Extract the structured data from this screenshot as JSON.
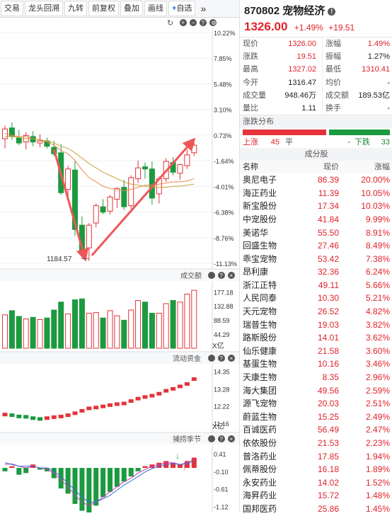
{
  "toolbar": {
    "buttons": [
      "交易",
      "龙头回溯",
      "九转",
      "前复权",
      "叠加",
      "画线",
      "自选"
    ],
    "more_icon": "double-chevron-right-icon"
  },
  "chart": {
    "price_axis": [
      "10.22%",
      "7.85%",
      "5.48%",
      "3.10%",
      "0.73%",
      "-1.64%",
      "-4.01%",
      "-6.38%",
      "-8.76%",
      "-11.13%"
    ],
    "low_label": "1184.57",
    "volume_title": "成交额",
    "volume_axis": [
      "177.18",
      "132.88",
      "88.59",
      "44.29"
    ],
    "volume_unit": "X亿",
    "flow_title": "流动资金",
    "flow_axis": [
      "14.35",
      "13.28",
      "12.22",
      "11.16"
    ],
    "flow_unit": "X亿",
    "season_title": "捕捞季节",
    "season_axis": [
      "0.41",
      "-0.10",
      "-0.61",
      "-1.12"
    ],
    "colors": {
      "up": "#e5323a",
      "down": "#1c9a3f",
      "ma1": "#e98a4a",
      "ma2": "#c9a33b",
      "arrow": "#ef5757"
    }
  },
  "chart_data": {
    "type": "candlestick",
    "candles": [
      {
        "o": 0.4,
        "h": 1.6,
        "l": -0.5,
        "c": 1.3
      },
      {
        "o": 1.4,
        "h": 1.9,
        "l": 0.3,
        "c": 0.6
      },
      {
        "o": 0.5,
        "h": 1.2,
        "l": -0.2,
        "c": 0.0
      },
      {
        "o": 0.1,
        "h": 1.0,
        "l": -0.6,
        "c": 0.7
      },
      {
        "o": 0.6,
        "h": 1.1,
        "l": -0.3,
        "c": 0.1
      },
      {
        "o": 0.0,
        "h": 0.8,
        "l": -0.4,
        "c": 0.2
      },
      {
        "o": 0.2,
        "h": 0.5,
        "l": -0.5,
        "c": -0.3
      },
      {
        "o": -0.4,
        "h": 0.2,
        "l": -1.2,
        "c": -1.0
      },
      {
        "o": -0.9,
        "h": -0.1,
        "l": -4.8,
        "c": -4.6
      },
      {
        "o": -4.3,
        "h": -2.1,
        "l": -5.2,
        "c": -2.4
      },
      {
        "o": -2.5,
        "h": -1.7,
        "l": -8.6,
        "c": -8.0
      },
      {
        "o": -7.6,
        "h": -6.8,
        "l": -10.7,
        "c": -9.9
      },
      {
        "o": -9.7,
        "h": -7.4,
        "l": -10.9,
        "c": -7.6
      },
      {
        "o": -7.4,
        "h": -5.6,
        "l": -7.8,
        "c": -5.8
      },
      {
        "o": -5.9,
        "h": -5.2,
        "l": -6.6,
        "c": -6.4
      },
      {
        "o": -6.3,
        "h": -4.8,
        "l": -6.6,
        "c": -5.0
      },
      {
        "o": -5.2,
        "h": -4.1,
        "l": -6.0,
        "c": -4.2
      },
      {
        "o": -4.1,
        "h": -3.4,
        "l": -6.2,
        "c": -5.9
      },
      {
        "o": -5.8,
        "h": -3.0,
        "l": -6.1,
        "c": -3.2
      },
      {
        "o": -3.3,
        "h": -1.6,
        "l": -3.7,
        "c": -2.3
      },
      {
        "o": -2.2,
        "h": -1.8,
        "l": -3.3,
        "c": -2.4
      },
      {
        "o": -2.4,
        "h": -1.7,
        "l": -5.7,
        "c": -5.1
      },
      {
        "o": -4.7,
        "h": -3.1,
        "l": -5.6,
        "c": -3.3
      },
      {
        "o": -3.3,
        "h": -1.4,
        "l": -3.6,
        "c": -1.7
      },
      {
        "o": -1.8,
        "h": -1.3,
        "l": -3.0,
        "c": -2.7
      },
      {
        "o": -2.8,
        "h": -1.9,
        "l": -3.4,
        "c": -2.0
      },
      {
        "o": -2.1,
        "h": -0.6,
        "l": -2.4,
        "c": -1.1
      },
      {
        "o": -0.9,
        "h": 0.0,
        "l": -1.2,
        "c": -0.2
      }
    ],
    "ma1": [
      0.9,
      0.7,
      0.6,
      0.6,
      0.4,
      0.3,
      0.1,
      -0.2,
      -0.7,
      -1.0,
      -1.6,
      -2.5,
      -3.2,
      -3.6,
      -4.0,
      -4.2,
      -4.3,
      -4.4,
      -4.3,
      -4.1,
      -3.9,
      -3.9,
      -3.8,
      -3.7,
      -3.6,
      -3.6,
      -3.5,
      -3.3
    ],
    "ma2": [
      0.6,
      0.6,
      0.5,
      0.4,
      0.4,
      0.3,
      0.2,
      0.0,
      -0.3,
      -0.5,
      -0.9,
      -1.4,
      -1.9,
      -2.3,
      -2.7,
      -3.0,
      -3.3,
      -3.6,
      -3.8,
      -3.9,
      -4.0,
      -4.1,
      -4.1,
      -4.1,
      -4.0,
      -4.0,
      -3.9,
      -3.8
    ],
    "volume": [
      105,
      118,
      100,
      92,
      97,
      90,
      95,
      120,
      145,
      108,
      152,
      155,
      110,
      112,
      95,
      118,
      102,
      88,
      120,
      150,
      145,
      110,
      110,
      140,
      150,
      145,
      170,
      182
    ],
    "flow": [
      11.72,
      11.68,
      11.6,
      11.58,
      11.5,
      11.45,
      11.5,
      11.56,
      11.6,
      11.68,
      11.8,
      11.95,
      12.1,
      12.15,
      12.22,
      12.3,
      12.36,
      12.4,
      12.55,
      12.7,
      12.8,
      12.88,
      13.0,
      13.18,
      13.3,
      13.45,
      13.6,
      13.9
    ],
    "season": [
      -0.1,
      0.05,
      -0.2,
      -0.15,
      0.1,
      -0.05,
      -0.1,
      -0.3,
      -0.6,
      -0.75,
      -1.05,
      -1.25,
      -1.3,
      -1.1,
      -0.85,
      -0.7,
      -0.55,
      -0.4,
      -0.25,
      -0.1,
      0.05,
      0.1,
      0.15,
      0.2,
      0.15,
      0.1,
      0.2,
      0.3
    ],
    "season_line1": [
      0.1,
      0.12,
      0.05,
      0.0,
      0.05,
      0.0,
      -0.05,
      -0.15,
      -0.35,
      -0.55,
      -0.8,
      -1.0,
      -1.1,
      -1.0,
      -0.85,
      -0.7,
      -0.55,
      -0.4,
      -0.3,
      -0.15,
      -0.05,
      0.05,
      0.1,
      0.15,
      0.15,
      0.1,
      0.15,
      0.25
    ],
    "season_line2": [
      0.15,
      0.1,
      0.05,
      0.05,
      0.05,
      0.0,
      0.0,
      -0.1,
      -0.25,
      -0.45,
      -0.65,
      -0.85,
      -1.0,
      -1.0,
      -0.9,
      -0.8,
      -0.65,
      -0.5,
      -0.38,
      -0.25,
      -0.12,
      -0.02,
      0.05,
      0.1,
      0.12,
      0.1,
      0.12,
      0.2
    ],
    "ylim": [
      -11.13,
      10.22
    ],
    "volume_ylim": [
      0,
      200
    ],
    "flow_ylim": [
      10.9,
      14.6
    ],
    "season_ylim": [
      -1.3,
      0.6
    ]
  },
  "quote": {
    "code": "870802",
    "name": "宠物经济",
    "price": "1326.00",
    "change_pct": "+1.49%",
    "change": "+19.51",
    "rows": [
      {
        "l": "现价",
        "v": "1326.00",
        "vc": "red",
        "l2": "涨幅",
        "v2": "1.49%",
        "v2c": "red"
      },
      {
        "l": "涨跌",
        "v": "19.51",
        "vc": "red",
        "l2": "振幅",
        "v2": "1.27%",
        "v2c": "dark"
      },
      {
        "l": "最高",
        "v": "1327.02",
        "vc": "red",
        "l2": "最低",
        "v2": "1310.41",
        "v2c": "red"
      },
      {
        "l": "今开",
        "v": "1316.47",
        "vc": "dark",
        "l2": "均价",
        "v2": "-",
        "v2c": "dark"
      },
      {
        "l": "成交量",
        "v": "948.46万",
        "vc": "dark",
        "l2": "成交额",
        "v2": "189.53亿",
        "v2c": "dark"
      },
      {
        "l": "量比",
        "v": "1.11",
        "vc": "dark",
        "l2": "换手",
        "v2": "-",
        "v2c": "dark"
      }
    ],
    "dist_title": "涨跌分布",
    "dist": {
      "up_label": "上涨",
      "up": "45",
      "flat_label": "平",
      "flat": "-",
      "down_label": "下跌",
      "down": "33",
      "up_count": 45,
      "down_count": 33
    },
    "const_title": "成分股",
    "const_head": [
      "名称",
      "现价",
      "涨幅"
    ],
    "constituents": [
      [
        "奥尼电子",
        "86.39",
        "20.00%"
      ],
      [
        "海正药业",
        "11.39",
        "10.05%"
      ],
      [
        "新宝股份",
        "17.34",
        "10.03%"
      ],
      [
        "中宠股份",
        "41.84",
        "9.99%"
      ],
      [
        "美诺华",
        "55.50",
        "8.91%"
      ],
      [
        "回盛生物",
        "27.46",
        "8.49%"
      ],
      [
        "乖宝宠物",
        "53.42",
        "7.38%"
      ],
      [
        "昂利康",
        "32.36",
        "6.24%"
      ],
      [
        "浙江正特",
        "49.11",
        "5.66%"
      ],
      [
        "人民同泰",
        "10.30",
        "5.21%"
      ],
      [
        "天元宠物",
        "26.52",
        "4.82%"
      ],
      [
        "瑞普生物",
        "19.03",
        "3.82%"
      ],
      [
        "路斯股份",
        "14.01",
        "3.62%"
      ],
      [
        "仙乐健康",
        "21.58",
        "3.60%"
      ],
      [
        "基蛋生物",
        "10.16",
        "3.46%"
      ],
      [
        "天康生物",
        "8.35",
        "2.96%"
      ],
      [
        "海大集团",
        "49.56",
        "2.59%"
      ],
      [
        "源飞宠物",
        "20.03",
        "2.51%"
      ],
      [
        "蔚蓝生物",
        "15.25",
        "2.49%"
      ],
      [
        "百诚医药",
        "56.49",
        "2.47%"
      ],
      [
        "依依股份",
        "21.53",
        "2.23%"
      ],
      [
        "普洛药业",
        "17.85",
        "1.94%"
      ],
      [
        "佩蒂股份",
        "16.18",
        "1.89%"
      ],
      [
        "永安药业",
        "14.02",
        "1.52%"
      ],
      [
        "海昇药业",
        "15.72",
        "1.48%"
      ],
      [
        "国邦医药",
        "25.86",
        "1.45%"
      ]
    ]
  }
}
